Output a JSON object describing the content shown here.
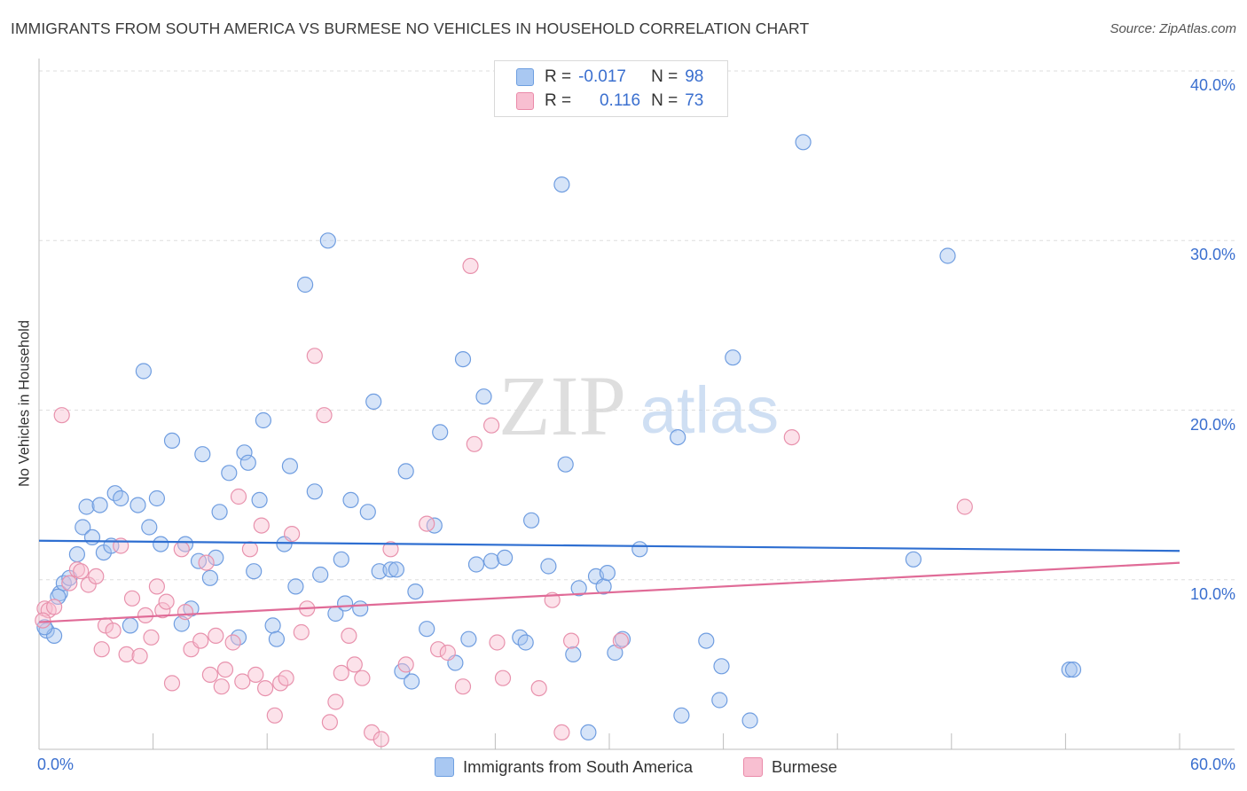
{
  "title": "IMMIGRANTS FROM SOUTH AMERICA VS BURMESE NO VEHICLES IN HOUSEHOLD CORRELATION CHART",
  "source": "Source: ZipAtlas.com",
  "watermark": {
    "zip": "ZIP",
    "atlas": "atlas"
  },
  "legend_top": [
    {
      "r_label": "R =",
      "r_value": "-0.017",
      "n_label": "N =",
      "n_value": "98",
      "color": "#a9c8f2",
      "border": "#6e9fe0"
    },
    {
      "r_label": "R =",
      "r_value": "0.116",
      "n_label": "N =",
      "n_value": "73",
      "color": "#f8bfd1",
      "border": "#ea8aa9"
    }
  ],
  "colors": {
    "blue_fill": "rgba(164,196,240,0.45)",
    "blue_stroke": "#6f9de0",
    "blue_line": "#2f6fd1",
    "pink_fill": "rgba(248,190,208,0.45)",
    "pink_stroke": "#e892ad",
    "pink_line": "#e06b97",
    "axis_label": "#3a6fcf",
    "grid": "#dedede"
  },
  "chart_data": {
    "type": "scatter",
    "title": "IMMIGRANTS FROM SOUTH AMERICA VS BURMESE NO VEHICLES IN HOUSEHOLD CORRELATION CHART",
    "xlabel": "",
    "ylabel": "No Vehicles in Household",
    "xlim": [
      0,
      60
    ],
    "ylim": [
      0,
      40
    ],
    "x_tick_labels": [
      "0.0%",
      "60.0%"
    ],
    "y_tick_labels": [
      "10.0%",
      "20.0%",
      "30.0%",
      "40.0%"
    ],
    "y_ticks": [
      10,
      20,
      30,
      40
    ],
    "grid": "horizontal dashed",
    "legend_placement": "bottom-center",
    "series": [
      {
        "name": "Immigrants from South America",
        "trend": {
          "x": [
            0,
            60
          ],
          "y": [
            12.3,
            11.7
          ]
        },
        "points": [
          [
            0.4,
            7.0
          ],
          [
            0.8,
            6.7
          ],
          [
            1.1,
            9.2
          ],
          [
            1.3,
            9.8
          ],
          [
            1.6,
            10.1
          ],
          [
            2.0,
            11.5
          ],
          [
            2.3,
            13.1
          ],
          [
            2.5,
            14.3
          ],
          [
            2.8,
            12.5
          ],
          [
            3.2,
            14.4
          ],
          [
            3.4,
            11.6
          ],
          [
            3.8,
            12.0
          ],
          [
            4.0,
            15.1
          ],
          [
            4.3,
            14.8
          ],
          [
            4.8,
            7.3
          ],
          [
            5.2,
            14.4
          ],
          [
            5.5,
            22.3
          ],
          [
            5.8,
            13.1
          ],
          [
            6.2,
            14.8
          ],
          [
            6.4,
            12.1
          ],
          [
            7.0,
            18.2
          ],
          [
            7.5,
            7.4
          ],
          [
            7.7,
            12.1
          ],
          [
            8.0,
            8.3
          ],
          [
            8.4,
            11.1
          ],
          [
            8.6,
            17.4
          ],
          [
            9.0,
            10.1
          ],
          [
            9.3,
            11.3
          ],
          [
            9.5,
            14.0
          ],
          [
            10.0,
            16.3
          ],
          [
            10.5,
            6.6
          ],
          [
            10.8,
            17.5
          ],
          [
            11.0,
            16.9
          ],
          [
            11.3,
            10.5
          ],
          [
            11.6,
            14.7
          ],
          [
            11.8,
            19.4
          ],
          [
            12.3,
            7.3
          ],
          [
            12.5,
            6.5
          ],
          [
            12.9,
            12.1
          ],
          [
            13.2,
            16.7
          ],
          [
            13.5,
            9.6
          ],
          [
            14.0,
            27.4
          ],
          [
            14.5,
            15.2
          ],
          [
            14.8,
            10.3
          ],
          [
            15.2,
            30.0
          ],
          [
            15.6,
            8.0
          ],
          [
            15.9,
            11.2
          ],
          [
            16.1,
            8.6
          ],
          [
            16.4,
            14.7
          ],
          [
            16.9,
            8.3
          ],
          [
            17.3,
            14.0
          ],
          [
            17.6,
            20.5
          ],
          [
            17.9,
            10.5
          ],
          [
            18.5,
            10.6
          ],
          [
            18.8,
            10.6
          ],
          [
            19.1,
            4.6
          ],
          [
            19.3,
            16.4
          ],
          [
            19.6,
            4.0
          ],
          [
            19.8,
            9.3
          ],
          [
            20.4,
            7.1
          ],
          [
            20.8,
            13.2
          ],
          [
            21.1,
            18.7
          ],
          [
            21.9,
            5.1
          ],
          [
            22.3,
            23.0
          ],
          [
            22.6,
            6.5
          ],
          [
            23.0,
            10.9
          ],
          [
            23.4,
            20.8
          ],
          [
            23.8,
            11.1
          ],
          [
            24.5,
            11.3
          ],
          [
            25.3,
            6.6
          ],
          [
            25.6,
            6.3
          ],
          [
            25.9,
            13.5
          ],
          [
            26.8,
            10.8
          ],
          [
            27.5,
            33.3
          ],
          [
            27.7,
            16.8
          ],
          [
            28.1,
            5.6
          ],
          [
            28.4,
            9.5
          ],
          [
            28.9,
            1.0
          ],
          [
            29.3,
            10.2
          ],
          [
            29.7,
            9.6
          ],
          [
            29.9,
            10.4
          ],
          [
            30.3,
            5.7
          ],
          [
            30.7,
            6.5
          ],
          [
            31.6,
            11.8
          ],
          [
            33.6,
            18.4
          ],
          [
            33.8,
            2.0
          ],
          [
            35.1,
            6.4
          ],
          [
            35.8,
            2.9
          ],
          [
            35.9,
            4.9
          ],
          [
            36.5,
            23.1
          ],
          [
            37.4,
            1.7
          ],
          [
            40.2,
            35.8
          ],
          [
            46.0,
            11.2
          ],
          [
            47.8,
            29.1
          ],
          [
            54.2,
            4.7
          ],
          [
            54.4,
            4.7
          ],
          [
            0.3,
            7.2
          ],
          [
            1.0,
            9.0
          ]
        ]
      },
      {
        "name": "Burmese",
        "trend": {
          "x": [
            0,
            60
          ],
          "y": [
            7.5,
            11.0
          ]
        },
        "points": [
          [
            0.3,
            8.3
          ],
          [
            0.5,
            8.2
          ],
          [
            0.8,
            8.4
          ],
          [
            1.2,
            19.7
          ],
          [
            1.6,
            9.8
          ],
          [
            2.0,
            10.6
          ],
          [
            2.2,
            10.5
          ],
          [
            2.6,
            9.7
          ],
          [
            3.0,
            10.2
          ],
          [
            3.3,
            5.9
          ],
          [
            3.5,
            7.3
          ],
          [
            3.9,
            7.0
          ],
          [
            4.3,
            12.0
          ],
          [
            4.6,
            5.6
          ],
          [
            4.9,
            8.9
          ],
          [
            5.3,
            5.5
          ],
          [
            5.6,
            7.9
          ],
          [
            5.9,
            6.6
          ],
          [
            6.2,
            9.6
          ],
          [
            6.5,
            8.2
          ],
          [
            6.7,
            8.7
          ],
          [
            7.0,
            3.9
          ],
          [
            7.5,
            11.8
          ],
          [
            7.7,
            8.1
          ],
          [
            8.0,
            5.9
          ],
          [
            8.5,
            6.4
          ],
          [
            8.8,
            11.0
          ],
          [
            9.0,
            4.4
          ],
          [
            9.3,
            6.7
          ],
          [
            9.6,
            3.7
          ],
          [
            9.8,
            4.7
          ],
          [
            10.2,
            6.3
          ],
          [
            10.5,
            14.9
          ],
          [
            10.7,
            4.0
          ],
          [
            11.1,
            11.8
          ],
          [
            11.4,
            4.4
          ],
          [
            11.7,
            13.2
          ],
          [
            11.9,
            3.6
          ],
          [
            12.4,
            2.0
          ],
          [
            12.7,
            3.9
          ],
          [
            13.0,
            4.2
          ],
          [
            13.3,
            12.7
          ],
          [
            13.8,
            6.9
          ],
          [
            14.1,
            8.3
          ],
          [
            14.5,
            23.2
          ],
          [
            15.0,
            19.7
          ],
          [
            15.3,
            1.6
          ],
          [
            15.6,
            2.8
          ],
          [
            15.9,
            4.5
          ],
          [
            16.3,
            6.7
          ],
          [
            16.6,
            5.0
          ],
          [
            17.0,
            4.2
          ],
          [
            17.5,
            1.0
          ],
          [
            18.0,
            0.6
          ],
          [
            18.5,
            11.8
          ],
          [
            19.3,
            5.0
          ],
          [
            20.4,
            13.3
          ],
          [
            21.0,
            5.9
          ],
          [
            21.5,
            5.7
          ],
          [
            22.3,
            3.7
          ],
          [
            22.7,
            28.5
          ],
          [
            22.9,
            18.0
          ],
          [
            23.8,
            19.1
          ],
          [
            24.1,
            6.3
          ],
          [
            24.4,
            4.2
          ],
          [
            26.3,
            3.6
          ],
          [
            27.0,
            8.8
          ],
          [
            27.5,
            1.0
          ],
          [
            28.0,
            6.4
          ],
          [
            30.6,
            6.4
          ],
          [
            39.6,
            18.4
          ],
          [
            48.7,
            14.3
          ],
          [
            0.2,
            7.6
          ]
        ]
      }
    ]
  }
}
